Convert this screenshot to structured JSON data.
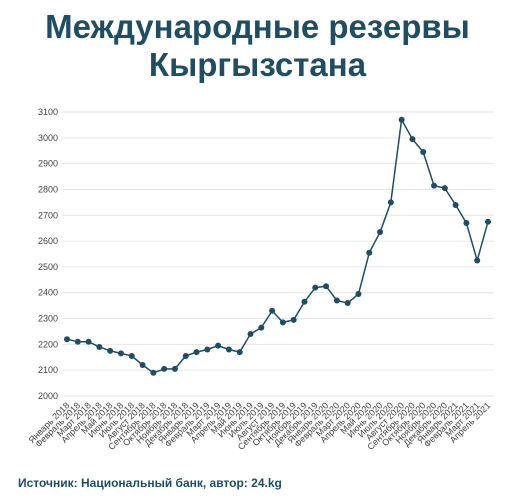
{
  "title_lines": [
    "Международные резервы",
    "Кыргызстана"
  ],
  "source": "Источник: Национальный банк, автор: 24.kg",
  "colors": {
    "line": "#1f4e64",
    "title": "#1f4e64",
    "grid": "#e6e6e6"
  },
  "chart_data": {
    "type": "line",
    "title": "Международные резервы Кыргызстана",
    "xlabel": "",
    "ylabel": "",
    "ylim": [
      2000,
      3100
    ],
    "yticks": [
      2000,
      2100,
      2200,
      2300,
      2400,
      2500,
      2600,
      2700,
      2800,
      2900,
      3000,
      3100
    ],
    "grid": true,
    "categories": [
      "Январь 2018",
      "Февраль 2018",
      "Март 2018",
      "Апрель 2018",
      "Май 2018",
      "Июнь 2018",
      "Июль 2018",
      "Август 2018",
      "Сентябрь 2018",
      "Октябрь 2018",
      "Ноябрь 2018",
      "Декабрь 2018",
      "Январь 2019",
      "Февраль 2019",
      "Март 2019",
      "Апрель 2019",
      "Май 2019",
      "Июнь 2019",
      "Июль 2019",
      "Август 2019",
      "Сентябрь 2019",
      "Октябрь 2019",
      "Ноябрь 2019",
      "Декабрь 2019",
      "Январь 2020",
      "Февраль 2020",
      "Март 2020",
      "Апрель 2020",
      "Май 2020",
      "Июнь 2020",
      "Июль 2020",
      "Август 2020",
      "Сентябрь 2020",
      "Октябрь 2020",
      "Ноябрь 2020",
      "Декабрь 2020",
      "Январь 2021",
      "Февраль 2021",
      "Март 2021",
      "Апрель 2021"
    ],
    "series": [
      {
        "values": [
          2220,
          2210,
          2210,
          2190,
          2175,
          2165,
          2155,
          2120,
          2090,
          2105,
          2105,
          2155,
          2170,
          2180,
          2195,
          2180,
          2170,
          2240,
          2265,
          2330,
          2285,
          2295,
          2365,
          2420,
          2425,
          2370,
          2360,
          2395,
          2555,
          2635,
          2750,
          3070,
          2995,
          2945,
          2815,
          2805,
          2740,
          2670,
          2525,
          2675
        ]
      }
    ]
  }
}
